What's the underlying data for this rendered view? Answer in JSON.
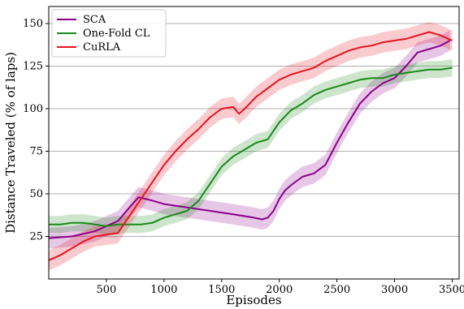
{
  "chart_data": {
    "type": "line",
    "xlabel": "Episodes",
    "ylabel": "Distance Traveled (% of laps)",
    "xlim": [
      0,
      3560
    ],
    "ylim": [
      0,
      160
    ],
    "x_ticks": [
      500,
      1000,
      1500,
      2000,
      2500,
      3000,
      3500
    ],
    "y_ticks": [
      25,
      50,
      75,
      100,
      125,
      150
    ],
    "grid": "horizontal",
    "legend_position": "top-left",
    "series": [
      {
        "name": "SCA",
        "color": "#8b008b",
        "points": [
          [
            0,
            24
          ],
          [
            200,
            25
          ],
          [
            400,
            28
          ],
          [
            600,
            34
          ],
          [
            700,
            42
          ],
          [
            780,
            48
          ],
          [
            900,
            46
          ],
          [
            1000,
            44
          ],
          [
            1200,
            42
          ],
          [
            1400,
            40
          ],
          [
            1600,
            38
          ],
          [
            1780,
            36
          ],
          [
            1850,
            35
          ],
          [
            1900,
            36
          ],
          [
            1950,
            40
          ],
          [
            2000,
            47
          ],
          [
            2050,
            52
          ],
          [
            2100,
            55
          ],
          [
            2200,
            60
          ],
          [
            2300,
            62
          ],
          [
            2400,
            67
          ],
          [
            2500,
            80
          ],
          [
            2600,
            92
          ],
          [
            2700,
            103
          ],
          [
            2800,
            110
          ],
          [
            2900,
            115
          ],
          [
            3000,
            118
          ],
          [
            3100,
            125
          ],
          [
            3200,
            133
          ],
          [
            3300,
            135
          ],
          [
            3400,
            137
          ],
          [
            3480,
            140
          ]
        ],
        "band": 6
      },
      {
        "name": "One-Fold CL",
        "color": "#1a8a1a",
        "points": [
          [
            0,
            32
          ],
          [
            100,
            32
          ],
          [
            200,
            33
          ],
          [
            300,
            33
          ],
          [
            400,
            32
          ],
          [
            500,
            31
          ],
          [
            600,
            32
          ],
          [
            700,
            32
          ],
          [
            800,
            32
          ],
          [
            900,
            33
          ],
          [
            1000,
            36
          ],
          [
            1100,
            38
          ],
          [
            1200,
            40
          ],
          [
            1300,
            46
          ],
          [
            1400,
            56
          ],
          [
            1500,
            66
          ],
          [
            1600,
            72
          ],
          [
            1700,
            76
          ],
          [
            1800,
            80
          ],
          [
            1900,
            82
          ],
          [
            2000,
            92
          ],
          [
            2100,
            99
          ],
          [
            2200,
            103
          ],
          [
            2300,
            108
          ],
          [
            2400,
            111
          ],
          [
            2500,
            113
          ],
          [
            2600,
            115
          ],
          [
            2700,
            117
          ],
          [
            2800,
            118
          ],
          [
            2900,
            118
          ],
          [
            3000,
            120
          ],
          [
            3100,
            121
          ],
          [
            3200,
            122
          ],
          [
            3300,
            123
          ],
          [
            3400,
            123
          ],
          [
            3500,
            124
          ]
        ],
        "band": 5
      },
      {
        "name": "CuRLA",
        "color": "#e8121f",
        "points": [
          [
            0,
            11
          ],
          [
            100,
            14
          ],
          [
            200,
            18
          ],
          [
            300,
            22
          ],
          [
            400,
            25
          ],
          [
            500,
            26
          ],
          [
            600,
            27
          ],
          [
            700,
            37
          ],
          [
            800,
            47
          ],
          [
            900,
            57
          ],
          [
            1000,
            67
          ],
          [
            1100,
            75
          ],
          [
            1200,
            82
          ],
          [
            1300,
            88
          ],
          [
            1400,
            95
          ],
          [
            1500,
            100
          ],
          [
            1600,
            101
          ],
          [
            1650,
            97
          ],
          [
            1700,
            100
          ],
          [
            1800,
            107
          ],
          [
            1900,
            112
          ],
          [
            2000,
            117
          ],
          [
            2100,
            120
          ],
          [
            2200,
            122
          ],
          [
            2300,
            124
          ],
          [
            2400,
            128
          ],
          [
            2500,
            131
          ],
          [
            2600,
            134
          ],
          [
            2700,
            136
          ],
          [
            2800,
            137
          ],
          [
            2900,
            139
          ],
          [
            3000,
            140
          ],
          [
            3100,
            141
          ],
          [
            3200,
            143
          ],
          [
            3300,
            145
          ],
          [
            3400,
            143
          ],
          [
            3500,
            140
          ]
        ],
        "band": 6
      }
    ]
  }
}
